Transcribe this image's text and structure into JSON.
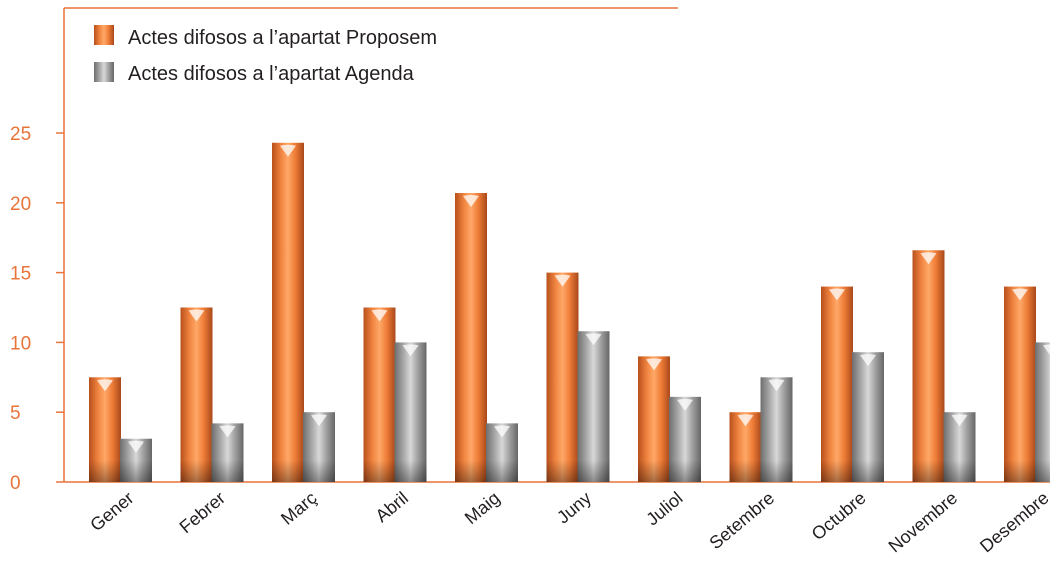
{
  "chart_data": {
    "type": "bar",
    "categories": [
      "Gener",
      "Febrer",
      "Març",
      "Abril",
      "Maig",
      "Juny",
      "Juliol",
      "Setembre",
      "Octubre",
      "Novembre",
      "Desembre"
    ],
    "series": [
      {
        "name": "Actes difosos a l’apartat Proposem",
        "values": [
          7.5,
          12.5,
          24.3,
          12.5,
          20.7,
          15,
          9,
          5,
          14,
          16.6,
          14
        ]
      },
      {
        "name": "Actes difosos a l’apartat Agenda",
        "values": [
          3.1,
          4.2,
          5,
          10,
          4.2,
          10.8,
          6.1,
          7.5,
          9.3,
          5,
          10
        ]
      }
    ],
    "yticks": [
      0,
      5,
      10,
      15,
      20,
      25
    ],
    "ylim": [
      0,
      25
    ],
    "grid": false,
    "legend_position": "top-left",
    "colors": {
      "series1": "#e8743a",
      "series2": "#9b9b9b",
      "axis": "#e8743a"
    }
  }
}
